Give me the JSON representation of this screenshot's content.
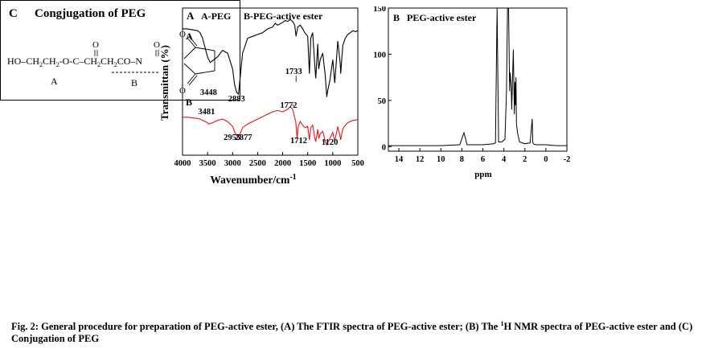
{
  "panel_a": {
    "panel_letter": "A",
    "legend_a": "A-PEG",
    "legend_b": "B-PEG-active ester",
    "curve_label_a": "A",
    "curve_label_b": "B",
    "ylabel": "Transmittan (%)",
    "xlabel": "Wavenumber/cm",
    "xlabel_sup": "-1",
    "annotation_1733": "1733",
    "annotation_1772": "1772",
    "color_a": "#000000",
    "color_b": "#e8141b"
  },
  "panel_b": {
    "panel_title": "B   PEG-active ester",
    "xlabel": "ppm"
  },
  "panel_c": {
    "title_letter": "C",
    "title": "Congjugation of PEG",
    "formula_left": "HO–CH",
    "sub_2a": "2",
    "formula_mid1": "CH",
    "sub_2b": "2",
    "formula_mid2": "-O-C–CH",
    "sub_2c": "2",
    "formula_mid3": "CH",
    "sub_2d": "2",
    "formula_mid4": "CO–N",
    "carbonyl_o1": "O",
    "carbonyl_o2": "O",
    "ring_o_top": "O",
    "ring_o_bottom": "O",
    "label_a": "A",
    "label_b": "B"
  },
  "caption": {
    "part1": "Fig. 2: General procedure for preparation of PEG-active ester, (A) The FTIR spectra of PEG-active ester; (B) The ",
    "sup": "1",
    "part2": "H NMR spectra of PEG-active ester and (C) Conjugation of PEG"
  },
  "chart_data": [
    {
      "type": "line",
      "title": "A-PEG  B-PEG-active ester",
      "xlabel": "Wavenumber/cm-1",
      "ylabel": "Transmittan (%)",
      "xlim": [
        4000,
        500
      ],
      "x_ticks": [
        4000,
        3500,
        3000,
        2500,
        2000,
        1500,
        1000,
        500
      ],
      "y_ticks": [],
      "series": [
        {
          "name": "A-PEG",
          "color": "#000000",
          "x": [
            4000,
            3900,
            3800,
            3700,
            3650,
            3600,
            3550,
            3500,
            3448,
            3400,
            3300,
            3200,
            3100,
            3000,
            2960,
            2920,
            2883,
            2850,
            2800,
            2700,
            2600,
            2500,
            2400,
            2300,
            2200,
            2150,
            2100,
            2000,
            1950,
            1900,
            1850,
            1800,
            1760,
            1733,
            1700,
            1650,
            1600,
            1560,
            1500,
            1466,
            1440,
            1400,
            1360,
            1340,
            1300,
            1280,
            1250,
            1200,
            1150,
            1120,
            1100,
            1060,
            1000,
            960,
            940,
            900,
            850,
            842,
            800,
            750,
            700,
            650,
            600,
            550,
            500
          ],
          "y": [
            88,
            88,
            87,
            86,
            84,
            78,
            68,
            58,
            52,
            54,
            58,
            65,
            62,
            45,
            28,
            20,
            18,
            35,
            62,
            78,
            80,
            82,
            84,
            88,
            90,
            94,
            92,
            95,
            97,
            96,
            98,
            96,
            92,
            80,
            90,
            92,
            88,
            84,
            80,
            40,
            78,
            84,
            50,
            35,
            72,
            45,
            55,
            62,
            38,
            15,
            22,
            32,
            55,
            30,
            45,
            75,
            50,
            40,
            70,
            78,
            82,
            84,
            86,
            85,
            86
          ]
        },
        {
          "name": "B-PEG-active ester",
          "color": "#e8141b",
          "x": [
            4000,
            3900,
            3800,
            3700,
            3650,
            3600,
            3550,
            3500,
            3481,
            3400,
            3300,
            3200,
            3100,
            3000,
            2955,
            2920,
            2877,
            2850,
            2800,
            2700,
            2600,
            2500,
            2400,
            2300,
            2200,
            2100,
            2000,
            1900,
            1850,
            1800,
            1772,
            1740,
            1712,
            1690,
            1650,
            1600,
            1560,
            1500,
            1466,
            1440,
            1400,
            1360,
            1340,
            1300,
            1280,
            1250,
            1200,
            1150,
            1120,
            1100,
            1060,
            1000,
            960,
            940,
            900,
            850,
            842,
            800,
            750,
            700,
            650,
            600,
            550,
            500
          ],
          "y": [
            45,
            45,
            44,
            43,
            42,
            40,
            38,
            36,
            34,
            36,
            40,
            42,
            38,
            30,
            20,
            16,
            14,
            18,
            28,
            34,
            38,
            42,
            46,
            50,
            54,
            56,
            54,
            58,
            62,
            58,
            48,
            38,
            10,
            30,
            38,
            32,
            28,
            30,
            8,
            28,
            32,
            12,
            5,
            25,
            10,
            18,
            22,
            6,
            0,
            4,
            10,
            20,
            5,
            14,
            30,
            12,
            8,
            26,
            32,
            36,
            38,
            40,
            40,
            42
          ]
        }
      ],
      "annotations": [
        "3448",
        "2883",
        "3481",
        "2955",
        "2877",
        "1733",
        "1772",
        "1712",
        "1120"
      ]
    },
    {
      "type": "line",
      "title": "PEG-active ester",
      "xlabel": "ppm",
      "ylabel": "",
      "xlim": [
        15,
        -2
      ],
      "ylim": [
        -5,
        150
      ],
      "x_ticks": [
        14,
        12,
        10,
        8,
        6,
        4,
        2,
        0,
        -2
      ],
      "y_ticks": [
        0,
        50,
        100,
        150
      ],
      "series": [
        {
          "name": "",
          "color": "#000000",
          "x": [
            15,
            12,
            10,
            8.2,
            7.8,
            7.5,
            7.2,
            6,
            5,
            4.8,
            4.65,
            4.5,
            4.2,
            3.9,
            3.75,
            3.65,
            3.6,
            3.55,
            3.45,
            3.4,
            3.3,
            3.25,
            3.1,
            3.0,
            2.95,
            2.9,
            2.85,
            2.8,
            2.7,
            2.6,
            2.5,
            2.0,
            1.5,
            1.3,
            1.25,
            1.2,
            1.0,
            0.5,
            0,
            -1,
            -2
          ],
          "y": [
            1,
            1,
            1,
            2,
            15,
            2,
            2,
            2,
            3,
            4,
            150,
            5,
            5,
            8,
            60,
            150,
            150,
            150,
            60,
            80,
            65,
            40,
            105,
            35,
            70,
            45,
            75,
            25,
            15,
            10,
            5,
            3,
            4,
            30,
            5,
            3,
            2,
            2,
            2,
            1,
            1
          ]
        }
      ]
    }
  ]
}
